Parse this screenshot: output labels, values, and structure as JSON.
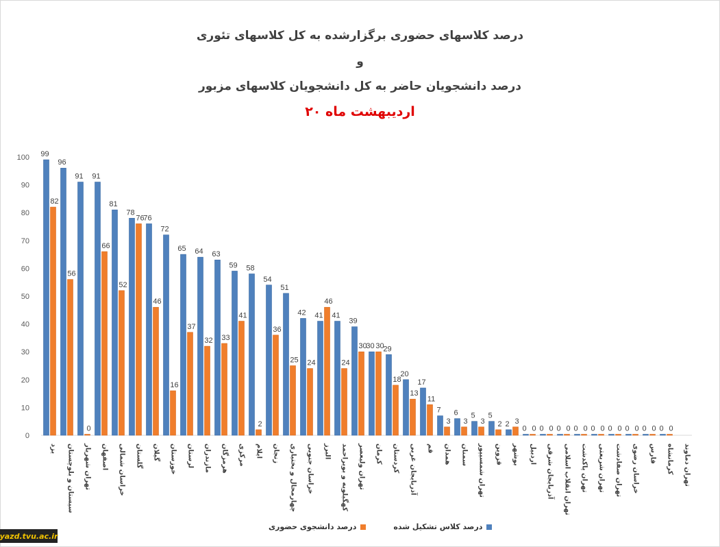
{
  "chart_data": {
    "type": "bar",
    "title": "درصد کلاسهای حضوری برگزارشده به کل کلاسهای تئوری",
    "title_connector": "و",
    "title_line2": "درصد دانشجویان حاضر به کل دانشجویان کلاسهای مزبور",
    "subtitle": "۲۰ اردیبهشت ماه",
    "xlabel": "",
    "ylabel": "",
    "ylim": [
      0,
      100
    ],
    "yticks": [
      0,
      10,
      20,
      30,
      40,
      50,
      60,
      70,
      80,
      90,
      100
    ],
    "grid": false,
    "legend_position": "bottom",
    "categories": [
      "یزد",
      "سیستان و بلوچستان",
      "تهران شهریار",
      "اصفهان",
      "خراسان شمالی",
      "گلستان",
      "گیلان",
      "خوزستان",
      "لرستان",
      "مازندران",
      "هرمزگان",
      "مرکزی",
      "ایلام",
      "زنجان",
      "چهارمحال و بختیاری",
      "خراسان جنوبی",
      "البرز",
      "کهگیلویه و بویراحمد",
      "تهران ولیعصر",
      "کرمان",
      "کردستان",
      "آذربایجان غربی",
      "قم",
      "همدان",
      "سمنان",
      "تهران شمسیپور",
      "قزوین",
      "بوشهر",
      "اردبیل",
      "آذربایجان شرقی",
      "تهران انقلاب اسلامی",
      "تهران پاکدشت",
      "تهران شریعتی",
      "تهران صفادشت",
      "خراسان رضوی",
      "فارس",
      "کرمانشاه",
      "تهران دماوند"
    ],
    "series": [
      {
        "name": "درصد کلاس تشکیل شده",
        "color": "#4f81bd",
        "values": [
          99,
          96,
          91,
          91,
          81,
          78,
          76,
          72,
          65,
          64,
          63,
          59,
          58,
          54,
          51,
          42,
          41,
          41,
          39,
          30,
          29,
          20,
          17,
          7,
          6,
          5,
          5,
          2,
          0,
          0,
          0,
          0,
          0,
          0,
          0,
          0,
          0,
          null
        ],
        "labels": [
          "99",
          "96",
          "91",
          "91",
          "81",
          "78",
          "76",
          "72",
          "65",
          "64",
          "63",
          "59",
          "58",
          "54",
          "51",
          "42",
          "41",
          "41",
          "39",
          "30",
          "29",
          "20",
          "17",
          "7",
          "6",
          "5",
          "5",
          "2",
          "0",
          "0",
          "0",
          "0",
          "0",
          "0",
          "0",
          "0",
          "0",
          ""
        ]
      },
      {
        "name": "درصد دانشجوی حضوری",
        "color": "#f07e2c",
        "values": [
          82,
          56,
          0,
          66,
          52,
          76,
          46,
          16,
          37,
          32,
          33,
          41,
          2,
          36,
          25,
          24,
          46,
          24,
          30,
          30,
          18,
          13,
          11,
          3,
          3,
          3,
          2,
          3,
          0,
          0,
          0,
          0,
          0,
          0,
          0,
          0,
          0,
          null
        ],
        "labels": [
          "82",
          "56",
          "0",
          "66",
          "52",
          "76",
          "46",
          "16",
          "37",
          "32",
          "33",
          "41",
          "2",
          "36",
          "25",
          "24",
          "46",
          "24",
          "30",
          "30",
          "18",
          "13",
          "11",
          "3",
          "3",
          "3",
          "2",
          "3",
          "0",
          "0",
          "0",
          "0",
          "0",
          "0",
          "0",
          "0",
          "0",
          ""
        ]
      }
    ]
  },
  "watermark": "yazd.tvu.ac.ir"
}
